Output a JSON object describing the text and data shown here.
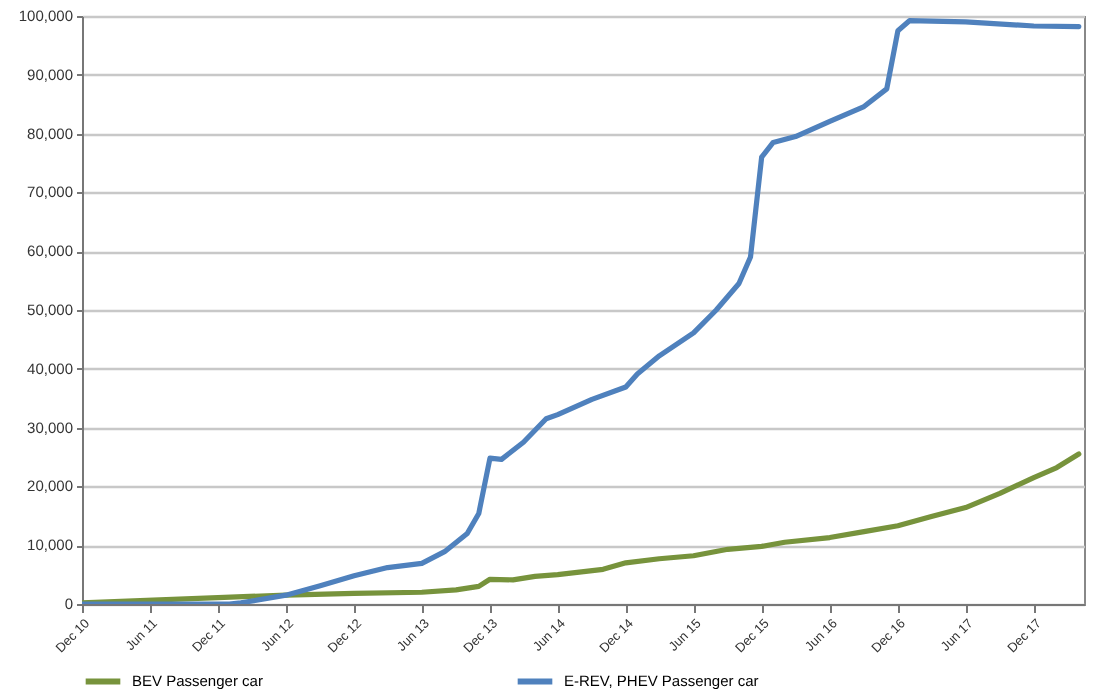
{
  "chart_data": {
    "type": "line",
    "grid": "y",
    "legend": "bottom",
    "marker": "none",
    "line_style": "solid",
    "xlim": [
      "2010-12",
      "2018-04-15"
    ],
    "xticks": [
      {
        "value": "2010-12",
        "label": "Dec 10"
      },
      {
        "value": "2011-06",
        "label": "Jun 11"
      },
      {
        "value": "2011-12",
        "label": "Dec 11"
      },
      {
        "value": "2012-06",
        "label": "Jun 12"
      },
      {
        "value": "2012-12",
        "label": "Dec 12"
      },
      {
        "value": "2013-06",
        "label": "Jun 13"
      },
      {
        "value": "2013-12",
        "label": "Dec 13"
      },
      {
        "value": "2014-06",
        "label": "Jun 14"
      },
      {
        "value": "2014-12",
        "label": "Dec 14"
      },
      {
        "value": "2015-06",
        "label": "Jun 15"
      },
      {
        "value": "2015-12",
        "label": "Dec 15"
      },
      {
        "value": "2016-06",
        "label": "Jun 16"
      },
      {
        "value": "2016-12",
        "label": "Dec 16"
      },
      {
        "value": "2017-06",
        "label": "Jun 17"
      },
      {
        "value": "2017-12",
        "label": "Dec 17"
      }
    ],
    "ylim": [
      0,
      100000
    ],
    "yticks": [
      0,
      {
        "value": 10000,
        "label": "10,000"
      },
      {
        "value": 20000,
        "label": "20,000"
      },
      {
        "value": 30000,
        "label": "30,000"
      },
      {
        "value": 40000,
        "label": "40,000"
      },
      {
        "value": 50000,
        "label": "50,000"
      },
      {
        "value": 60000,
        "label": "60,000"
      },
      {
        "value": 70000,
        "label": "70,000"
      },
      {
        "value": 80000,
        "label": "80,000"
      },
      {
        "value": 90000,
        "label": "90,000"
      },
      {
        "value": 100000,
        "label": "100,000"
      }
    ],
    "series": [
      {
        "name": "BEV Passenger car",
        "color": "#77933c",
        "x": [
          "2010-12",
          "2011-12",
          "2012-06",
          "2012-12",
          "2013-06",
          "2013-09",
          "2013-11",
          "2013-12",
          "2014-02",
          "2014-04",
          "2014-06",
          "2014-10",
          "2014-12",
          "2015-03",
          "2015-06",
          "2015-09",
          "2015-12",
          "2016-02",
          "2016-06",
          "2016-09",
          "2016-12",
          "2017-03",
          "2017-06",
          "2017-09",
          "2017-12",
          "2018-02",
          "2018-04"
        ],
        "values": [
          200,
          1100,
          1500,
          1800,
          2000,
          2400,
          3000,
          4200,
          4100,
          4700,
          5000,
          5900,
          7000,
          7700,
          8200,
          9300,
          9800,
          10500,
          11300,
          12300,
          13300,
          14900,
          16400,
          18800,
          21500,
          23200,
          25500
        ]
      },
      {
        "name": "E-REV, PHEV Passenger car",
        "color": "#4f81bd",
        "x": [
          "2010-12",
          "2012-01",
          "2012-02",
          "2012-06",
          "2012-09",
          "2012-12",
          "2013-03",
          "2013-06",
          "2013-08",
          "2013-10",
          "2013-11",
          "2013-12",
          "2014-01",
          "2014-03",
          "2014-05",
          "2014-06",
          "2014-09",
          "2014-12",
          "2015-01",
          "2015-03",
          "2015-06",
          "2015-08",
          "2015-10",
          "2015-11",
          "2015-12",
          "2016-01",
          "2016-03",
          "2016-06",
          "2016-09",
          "2016-11",
          "2016-12",
          "2017-01",
          "2017-06",
          "2017-12",
          "2018-04"
        ],
        "values": [
          0,
          0,
          200,
          1500,
          3100,
          4800,
          6200,
          6900,
          8900,
          12000,
          15400,
          24800,
          24600,
          27500,
          31500,
          32200,
          34800,
          36900,
          39100,
          42200,
          46100,
          50000,
          54500,
          59000,
          76000,
          78500,
          79500,
          82100,
          84600,
          87600,
          97500,
          99200,
          99000,
          98300,
          98200
        ]
      }
    ]
  }
}
